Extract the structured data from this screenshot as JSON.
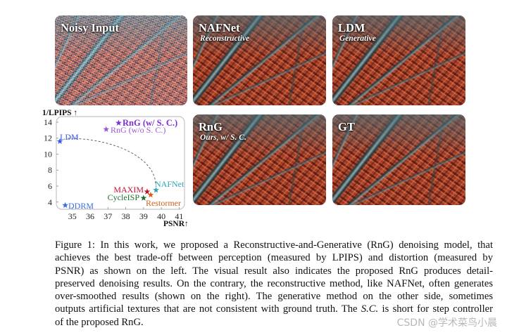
{
  "figure": {
    "panels": {
      "noisy": {
        "title": "Noisy Input"
      },
      "nafnet": {
        "title": "NAFNet",
        "subtitle": "Reconstructive"
      },
      "ldm": {
        "title": "LDM",
        "subtitle": "Generative"
      },
      "rng": {
        "title": "RnG",
        "subtitle": "Ours, w/ S. C."
      },
      "gt": {
        "title": "GT"
      }
    }
  },
  "chart_data": {
    "type": "scatter",
    "marker": "star",
    "xlabel": "PSNR↑",
    "ylabel": "1/LPIPS ↑",
    "xlim": [
      34.1,
      41.3
    ],
    "ylim": [
      3.1,
      14.7
    ],
    "xticks": [
      35,
      36,
      37,
      38,
      39,
      40,
      41
    ],
    "yticks": [
      4,
      6,
      8,
      10,
      12,
      14
    ],
    "grid": false,
    "points": [
      {
        "label": "LDM",
        "x": 34.3,
        "y": 11.6,
        "color": "#3a56e8"
      },
      {
        "label": "RnG (w/ S. C.)",
        "x": 37.6,
        "y": 13.9,
        "color": "#7b2fd6"
      },
      {
        "label": "RnG (w/o S. C.)",
        "x": 36.9,
        "y": 13.1,
        "color": "#9a5ad8"
      },
      {
        "label": "NAFNet",
        "x": 39.7,
        "y": 5.5,
        "color": "#2ba5b5"
      },
      {
        "label": "MAXIM",
        "x": 39.2,
        "y": 5.3,
        "color": "#c8102e"
      },
      {
        "label": "CycleISP",
        "x": 39.0,
        "y": 4.5,
        "color": "#1f6e2f"
      },
      {
        "label": "Restormer",
        "x": 39.4,
        "y": 4.9,
        "color": "#d0621b"
      },
      {
        "label": "DDRM",
        "x": 34.6,
        "y": 3.6,
        "color": "#3a6ee8"
      }
    ]
  },
  "caption": {
    "lines": [
      "Figure 1: In this work, we proposed a Reconstructive-and-Generative (RnG) denoising model, that",
      "achieves the best trade-off between perception (measured by LPIPS) and distortion (measured by",
      "PSNR) as shown on the left. The visual result also indicates the proposed RnG produces detail-",
      "preserved denoising results. On the contrary, the reconstructive method, like NAFNet, often generates",
      "over-smoothed results (shown on the right). The generative method on the other side, sometimes"
    ],
    "line6": {
      "before": "outputs artificial textures that are not consistent with ground truth. The ",
      "italic": "S.C.",
      "after": " is short for step controller"
    },
    "line7": "of the proposed RnG."
  },
  "watermark": "CSDN @学术菜鸟小晨"
}
